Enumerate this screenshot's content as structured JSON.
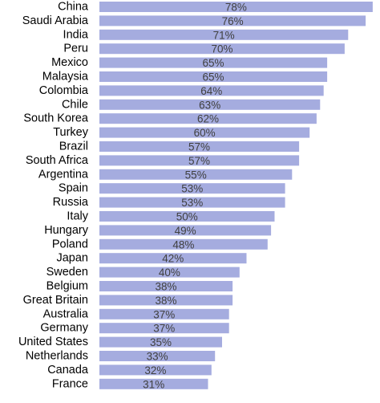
{
  "chart_data": {
    "type": "bar",
    "orientation": "horizontal",
    "categories": [
      "China",
      "Saudi Arabia",
      "India",
      "Peru",
      "Mexico",
      "Malaysia",
      "Colombia",
      "Chile",
      "South Korea",
      "Turkey",
      "Brazil",
      "South Africa",
      "Argentina",
      "Spain",
      "Russia",
      "Italy",
      "Hungary",
      "Poland",
      "Japan",
      "Sweden",
      "Belgium",
      "Great Britain",
      "Australia",
      "Germany",
      "United States",
      "Netherlands",
      "Canada",
      "France"
    ],
    "values": [
      78,
      76,
      71,
      70,
      65,
      65,
      64,
      63,
      62,
      60,
      57,
      57,
      55,
      53,
      53,
      50,
      49,
      48,
      42,
      40,
      38,
      38,
      37,
      37,
      35,
      33,
      32,
      31
    ],
    "value_labels": [
      "78%",
      "76%",
      "71%",
      "70%",
      "65%",
      "65%",
      "64%",
      "63%",
      "62%",
      "60%",
      "57%",
      "57%",
      "55%",
      "53%",
      "53%",
      "50%",
      "49%",
      "48%",
      "42%",
      "40%",
      "38%",
      "38%",
      "37%",
      "37%",
      "35%",
      "33%",
      "32%",
      "31%"
    ],
    "title": "",
    "xlabel": "",
    "ylabel": "",
    "unit": "%",
    "grid": false,
    "legend": "none",
    "bar_color": "#a5acdf"
  }
}
